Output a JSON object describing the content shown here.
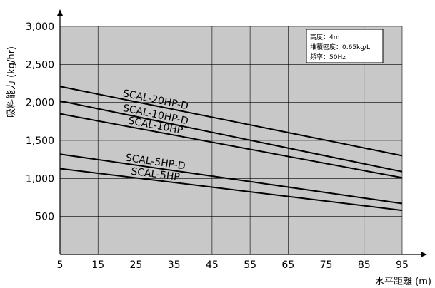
{
  "chart_data": {
    "type": "line",
    "xlabel": "水平距離 (m)",
    "ylabel": "吸料能力 (kg/hr)",
    "xlim": [
      5,
      95
    ],
    "ylim": [
      0,
      3000
    ],
    "x_ticks": [
      "5",
      "15",
      "25",
      "35",
      "45",
      "55",
      "65",
      "75",
      "85",
      "95"
    ],
    "y_ticks": [
      {
        "value": 500,
        "label": "500"
      },
      {
        "value": 1000,
        "label": "1,000"
      },
      {
        "value": 1500,
        "label": "1,500"
      },
      {
        "value": 2000,
        "label": "2,000"
      },
      {
        "value": 2500,
        "label": "2,500"
      },
      {
        "value": 3000,
        "label": "3,000"
      }
    ],
    "grid": true,
    "plot_background": "#c8c8c8",
    "line_color": "#000000",
    "series": [
      {
        "name": "SCAL-20HP-D",
        "x": [
          5,
          95
        ],
        "values": [
          2210,
          1300
        ]
      },
      {
        "name": "SCAL-10HP-D",
        "x": [
          5,
          95
        ],
        "values": [
          2020,
          1090
        ]
      },
      {
        "name": "SCAL-10HP",
        "x": [
          5,
          95
        ],
        "values": [
          1850,
          1010
        ]
      },
      {
        "name": "SCAL-5HP-D",
        "x": [
          5,
          95
        ],
        "values": [
          1320,
          670
        ]
      },
      {
        "name": "SCAL-5HP",
        "x": [
          5,
          95
        ],
        "values": [
          1130,
          580
        ]
      }
    ],
    "note": [
      "高度：4m",
      "堆積密度：0.65kg/L",
      "頻率：50Hz"
    ]
  }
}
